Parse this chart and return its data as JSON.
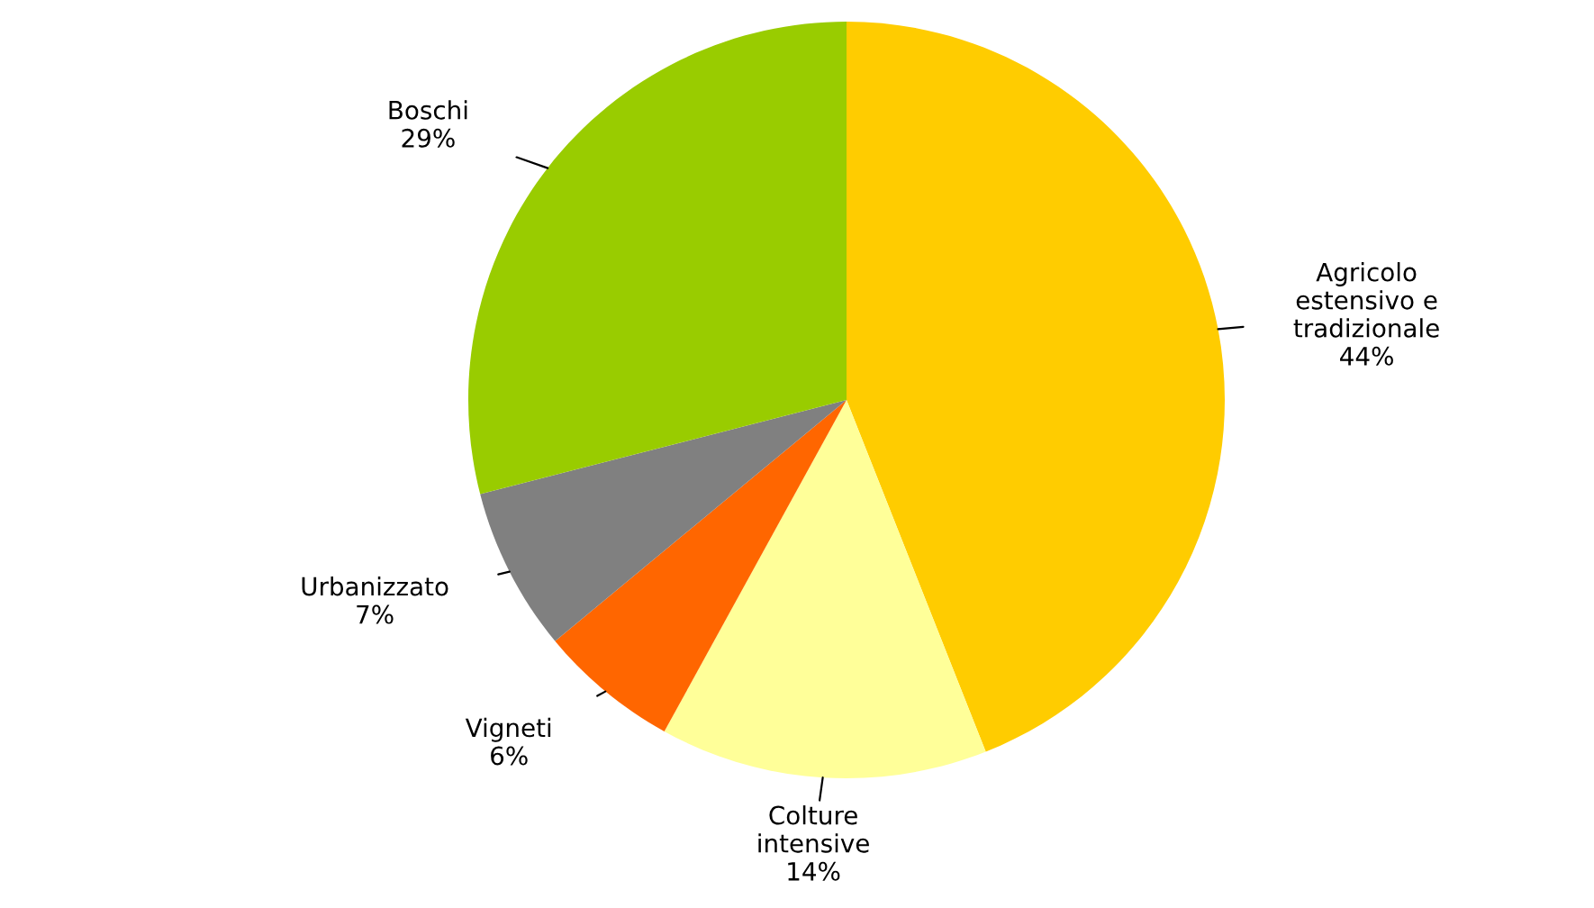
{
  "chart_data": {
    "type": "pie",
    "categories": [
      "Agricolo\nestensivo e\ntradizionale",
      "Colture\nintensive",
      "Vigneti",
      "Urbanizzato",
      "Boschi"
    ],
    "values": [
      44,
      14,
      6,
      7,
      29
    ],
    "colors": [
      "#ffcc00",
      "#ffff99",
      "#ff6600",
      "#808080",
      "#99cc00"
    ],
    "value_labels": [
      "44%",
      "14%",
      "6%",
      "7%",
      "29%"
    ],
    "legend": false
  }
}
